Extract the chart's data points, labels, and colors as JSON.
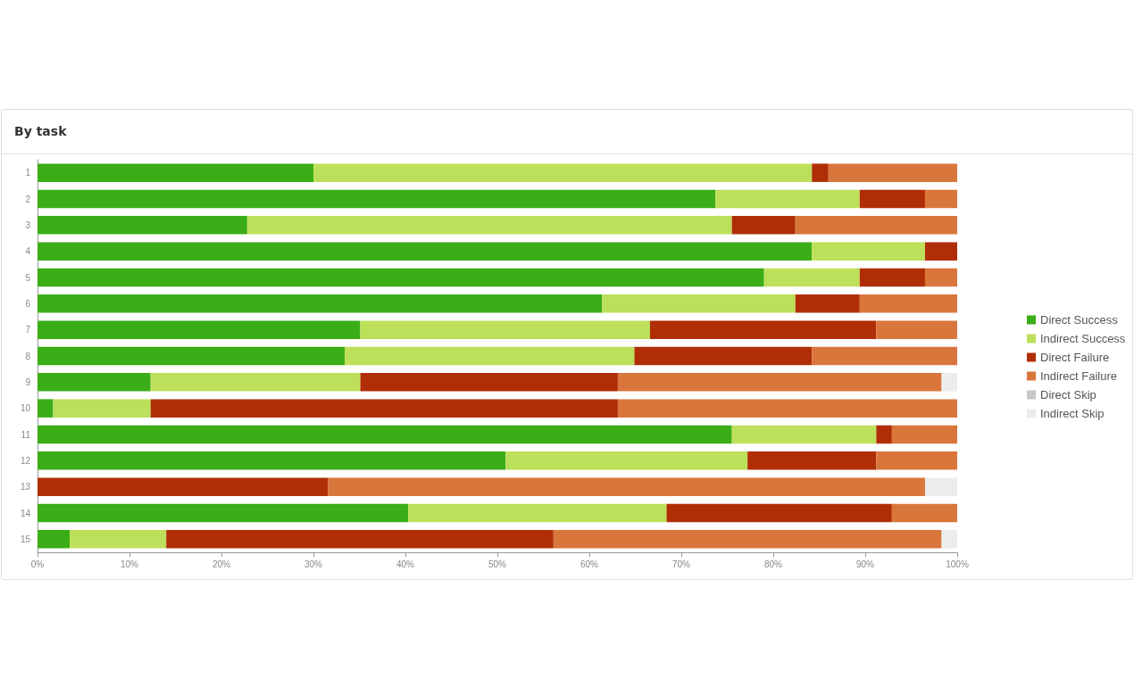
{
  "chart_data": {
    "type": "bar",
    "title": "By task",
    "orientation": "horizontal",
    "stacked": true,
    "categories": [
      "1",
      "2",
      "3",
      "4",
      "5",
      "6",
      "7",
      "8",
      "9",
      "10",
      "11",
      "12",
      "13",
      "14",
      "15"
    ],
    "series": [
      {
        "name": "Direct Success",
        "color": "#3aad17",
        "values": [
          30,
          73.7,
          22.8,
          84.2,
          79,
          61.4,
          35.1,
          33.4,
          12.3,
          1.7,
          75.5,
          50.9,
          0,
          40.3,
          3.5
        ]
      },
      {
        "name": "Indirect Success",
        "color": "#bde05a",
        "values": [
          54.2,
          15.7,
          52.7,
          12.3,
          10.4,
          21,
          31.5,
          31.5,
          22.8,
          10.6,
          15.7,
          26.3,
          0,
          28.1,
          10.5
        ]
      },
      {
        "name": "Direct Failure",
        "color": "#b02e05",
        "values": [
          1.8,
          7.1,
          6.9,
          3.5,
          7.1,
          7,
          24.6,
          19.3,
          28,
          50.8,
          1.7,
          14,
          31.6,
          24.5,
          42.1
        ]
      },
      {
        "name": "Indirect Failure",
        "color": "#d9763c",
        "values": [
          14,
          3.5,
          17.6,
          0,
          3.5,
          10.6,
          8.8,
          15.8,
          35.2,
          36.9,
          7.1,
          8.8,
          64.9,
          7.1,
          42.2
        ]
      },
      {
        "name": "Direct Skip",
        "color": "#c8c8c8",
        "values": [
          0,
          0,
          0,
          0,
          0,
          0,
          0,
          0,
          0,
          0,
          0,
          0,
          0,
          0,
          0
        ]
      },
      {
        "name": "Indirect Skip",
        "color": "#ececec",
        "values": [
          0,
          0,
          0,
          0,
          0,
          0,
          0,
          0,
          1.7,
          0,
          0,
          0,
          3.5,
          0,
          1.7
        ]
      }
    ],
    "xlim": [
      0,
      100
    ],
    "xticks": [
      {
        "value": 0,
        "label": "0%"
      },
      {
        "value": 10,
        "label": "10%"
      },
      {
        "value": 20,
        "label": "20%"
      },
      {
        "value": 30,
        "label": "30%"
      },
      {
        "value": 40,
        "label": "40%"
      },
      {
        "value": 50,
        "label": "50%"
      },
      {
        "value": 60,
        "label": "60%"
      },
      {
        "value": 70,
        "label": "70%"
      },
      {
        "value": 80,
        "label": "80%"
      },
      {
        "value": 90,
        "label": "90%"
      },
      {
        "value": 100,
        "label": "100%"
      }
    ],
    "grid": false,
    "legend": "right"
  }
}
